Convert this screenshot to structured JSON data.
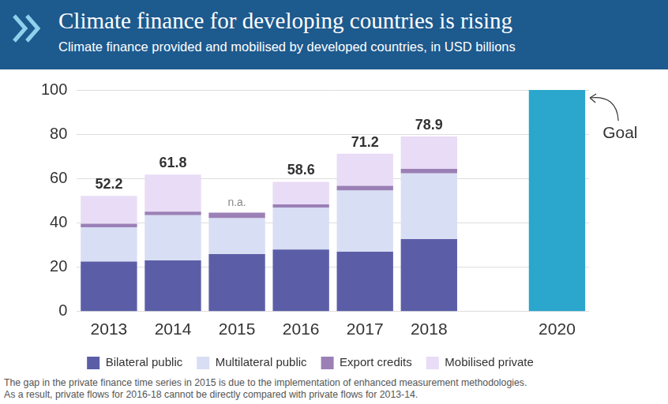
{
  "chart_data": {
    "type": "bar",
    "title": "Climate finance for developing countries is rising",
    "subtitle": "Climate finance provided and mobilised by developed countries, in USD billions",
    "categories": [
      "2013",
      "2014",
      "2015",
      "2016",
      "2017",
      "2018",
      null,
      "2020"
    ],
    "stacked": true,
    "series": [
      {
        "name": "Bilateral public",
        "color": "#5b5ea7",
        "values": [
          22.5,
          23.1,
          25.9,
          28.0,
          27.0,
          32.7,
          null,
          null
        ]
      },
      {
        "name": "Multilateral public",
        "color": "#d8def4",
        "values": [
          15.5,
          20.4,
          16.2,
          18.9,
          27.6,
          29.6,
          null,
          null
        ]
      },
      {
        "name": "Export credits",
        "color": "#9b80b6",
        "values": [
          1.6,
          1.6,
          2.5,
          1.5,
          2.1,
          2.1,
          null,
          null
        ]
      },
      {
        "name": "Mobilised private",
        "color": "#e9dcf6",
        "values": [
          12.6,
          16.7,
          null,
          10.1,
          14.5,
          14.6,
          null,
          null
        ]
      }
    ],
    "totals": {
      "values": [
        52.2,
        61.8,
        null,
        58.6,
        71.2,
        78.9,
        null,
        null
      ],
      "value_labels": [
        "52.2",
        "61.8",
        "n.a.",
        "58.6",
        "71.2",
        "78.9",
        null,
        null
      ]
    },
    "goal": {
      "label": "Goal",
      "color": "#2ba6cc",
      "values": [
        null,
        null,
        null,
        null,
        null,
        null,
        null,
        100
      ]
    },
    "ylim": [
      0,
      100
    ],
    "yticks": [
      0,
      20,
      40,
      60,
      80,
      100
    ],
    "grid": true,
    "legend": "bottom",
    "note": [
      "The gap in the private finance time series in 2015 is due to the implementation of enhanced measurement methodologies.",
      "As a result, private flows for 2016-18 cannot be directly compared with private flows for 2013-14."
    ]
  }
}
